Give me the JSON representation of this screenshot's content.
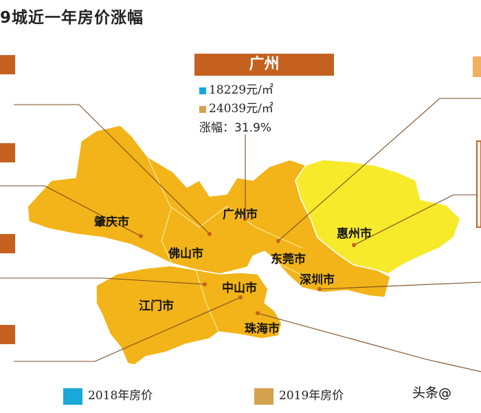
{
  "title": "9城近一年房价涨幅",
  "guangzhou": {
    "name": "广州",
    "price_2018": "18229元/㎡",
    "price_2019": "24039元/㎡",
    "growth": "涨幅：31.9%"
  },
  "cities": {
    "zhaoqing": "肇庆市",
    "guangzhou": "广州市",
    "foshan": "佛山市",
    "dongguan": "东莞市",
    "huizhou": "惠州市",
    "shenzhen": "深圳市",
    "zhongshan": "中山市",
    "jiangmen": "江门市",
    "zhuhai": "珠海市"
  },
  "legend": {
    "y2018": "2018年房价",
    "y2019": "2019年房价"
  },
  "watermark": "头条@",
  "colors": {
    "region_main": "#f2b418",
    "region_huizhou": "#f7ea2b",
    "header_brown": "#c5611f",
    "swatch_2018": "#1aa8d8",
    "swatch_2019": "#d4a14d",
    "leader": "#7a4b22"
  }
}
